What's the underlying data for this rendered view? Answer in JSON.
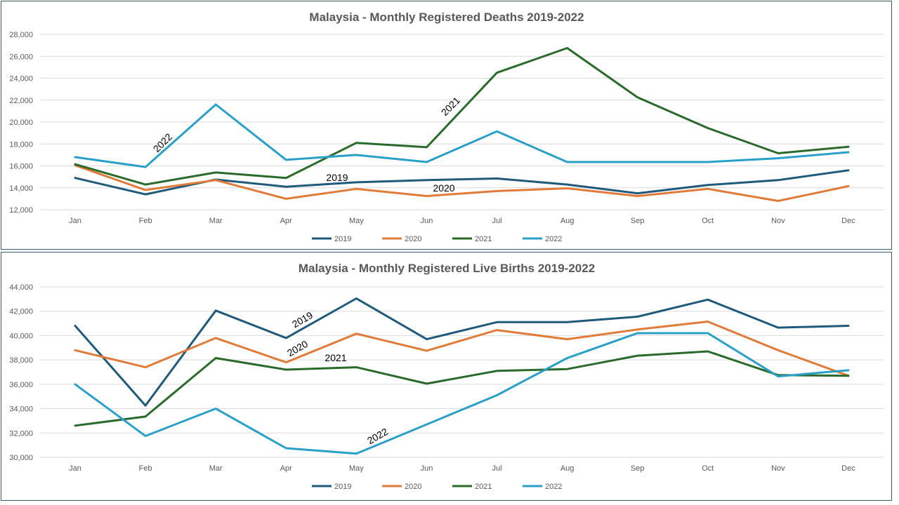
{
  "chart_data": [
    {
      "type": "line",
      "title": "Malaysia - Monthly Registered Deaths 2019-2022",
      "xlabel": "",
      "ylabel": "",
      "categories": [
        "Jan",
        "Feb",
        "Mar",
        "Apr",
        "May",
        "Jun",
        "Jul",
        "Aug",
        "Sep",
        "Oct",
        "Nov",
        "Dec"
      ],
      "ylim": [
        12000,
        28000
      ],
      "yticks": [
        12000,
        14000,
        16000,
        18000,
        20000,
        22000,
        24000,
        26000,
        28000
      ],
      "ytick_labels": [
        "12,000",
        "14,000",
        "16,000",
        "18,000",
        "20,000",
        "22,000",
        "24,000",
        "26,000",
        "28,000"
      ],
      "grid": true,
      "legend_position": "bottom",
      "series": [
        {
          "name": "2019",
          "color": "#1f5a7a",
          "values": [
            14900,
            13400,
            14750,
            14100,
            14500,
            14700,
            14850,
            14300,
            13500,
            14250,
            14700,
            15600
          ]
        },
        {
          "name": "2020",
          "color": "#e07b39",
          "values": [
            16050,
            13800,
            14700,
            13000,
            13900,
            13250,
            13700,
            13950,
            13250,
            13900,
            12800,
            14150
          ]
        },
        {
          "name": "2021",
          "color": "#2a6a2a",
          "values": [
            16150,
            14300,
            15400,
            14900,
            18100,
            17700,
            24500,
            26750,
            22250,
            19450,
            17150,
            17750
          ]
        },
        {
          "name": "2022",
          "color": "#2aa0c8",
          "values": [
            16800,
            15900,
            21600,
            16550,
            17000,
            16350,
            19150,
            16350,
            16350,
            16350,
            16700,
            17250
          ]
        }
      ],
      "annotations": [
        {
          "text": "2022",
          "series": "2022"
        },
        {
          "text": "2021",
          "series": "2021"
        },
        {
          "text": "2019",
          "series": "2019"
        },
        {
          "text": "2020",
          "series": "2020"
        }
      ]
    },
    {
      "type": "line",
      "title": "Malaysia - Monthly Registered Live Births 2019-2022",
      "xlabel": "",
      "ylabel": "",
      "categories": [
        "Jan",
        "Feb",
        "Mar",
        "Apr",
        "May",
        "Jun",
        "Jul",
        "Aug",
        "Sep",
        "Oct",
        "Nov",
        "Dec"
      ],
      "ylim": [
        30000,
        44000
      ],
      "yticks": [
        30000,
        32000,
        34000,
        36000,
        38000,
        40000,
        42000,
        44000
      ],
      "ytick_labels": [
        "30,000",
        "32,000",
        "34,000",
        "36,000",
        "38,000",
        "40,000",
        "42,000",
        "44,000"
      ],
      "grid": true,
      "legend_position": "bottom",
      "series": [
        {
          "name": "2019",
          "color": "#1f5a7a",
          "values": [
            40800,
            34250,
            42050,
            39800,
            43050,
            39700,
            41100,
            41100,
            41550,
            42950,
            40650,
            40800
          ]
        },
        {
          "name": "2020",
          "color": "#e07b39",
          "values": [
            38800,
            37400,
            39800,
            37800,
            40150,
            38750,
            40450,
            39700,
            40500,
            41150,
            38800,
            36700
          ]
        },
        {
          "name": "2021",
          "color": "#2a6a2a",
          "values": [
            32600,
            33350,
            38150,
            37200,
            37400,
            36050,
            37100,
            37250,
            38350,
            38700,
            36750,
            36700
          ]
        },
        {
          "name": "2022",
          "color": "#2aa0c8",
          "values": [
            36000,
            31750,
            34000,
            30750,
            30300,
            32700,
            35100,
            38150,
            40200,
            40200,
            36650,
            37150
          ]
        }
      ],
      "annotations": [
        {
          "text": "2019",
          "series": "2019"
        },
        {
          "text": "2020",
          "series": "2020"
        },
        {
          "text": "2021",
          "series": "2021"
        },
        {
          "text": "2022",
          "series": "2022"
        }
      ]
    }
  ]
}
